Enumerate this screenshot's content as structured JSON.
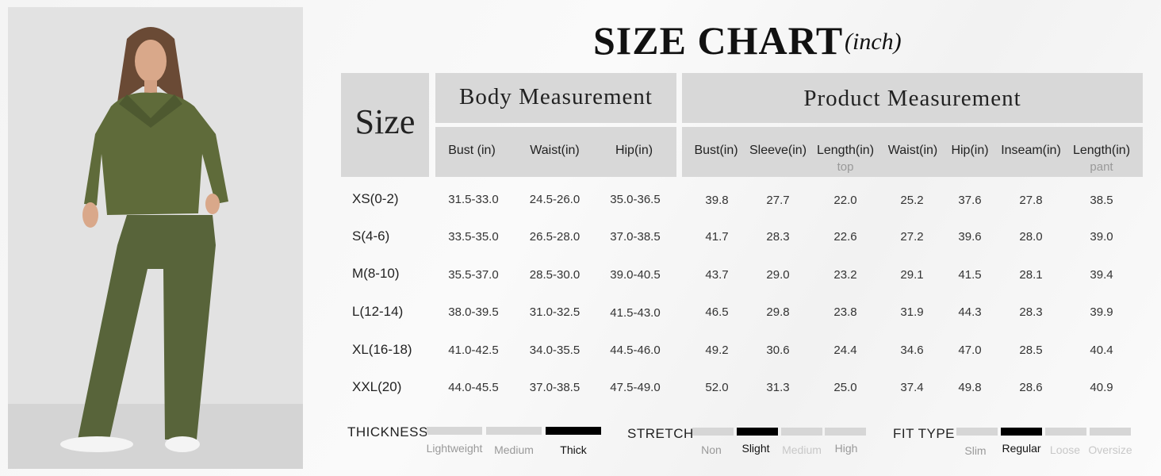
{
  "title": "SIZE CHART",
  "unit": "(inch)",
  "size_header": "Size",
  "body_header": "Body Measurement",
  "product_header": "Product Measurement",
  "body_columns": [
    "Bust (in)",
    "Waist(in)",
    "Hip(in)"
  ],
  "product_columns": [
    {
      "label": "Bust(in)",
      "sub": ""
    },
    {
      "label": "Sleeve(in)",
      "sub": ""
    },
    {
      "label": "Length(in)",
      "sub": "top"
    },
    {
      "label": "Waist(in)",
      "sub": ""
    },
    {
      "label": "Hip(in)",
      "sub": ""
    },
    {
      "label": "Inseam(in)",
      "sub": ""
    },
    {
      "label": "Length(in)",
      "sub": "pant"
    }
  ],
  "rows": [
    {
      "size": "XS(0-2)",
      "body": [
        "31.5-33.0",
        "24.5-26.0",
        "35.0-36.5"
      ],
      "product": [
        "39.8",
        "27.7",
        "22.0",
        "25.2",
        "37.6",
        "27.8",
        "38.5"
      ]
    },
    {
      "size": "S(4-6)",
      "body": [
        "33.5-35.0",
        "26.5-28.0",
        "37.0-38.5"
      ],
      "product": [
        "41.7",
        "28.3",
        "22.6",
        "27.2",
        "39.6",
        "28.0",
        "39.0"
      ]
    },
    {
      "size": "M(8-10)",
      "body": [
        "35.5-37.0",
        "28.5-30.0",
        "39.0-40.5"
      ],
      "product": [
        "43.7",
        "29.0",
        "23.2",
        "29.1",
        "41.5",
        "28.1",
        "39.4"
      ]
    },
    {
      "size": "L(12-14)",
      "body": [
        "38.0-39.5",
        "31.0-32.5",
        "41.5-43.0"
      ],
      "product": [
        "46.5",
        "29.8",
        "23.8",
        "31.9",
        "44.3",
        "28.3",
        "39.9"
      ]
    },
    {
      "size": "XL(16-18)",
      "body": [
        "41.0-42.5",
        "34.0-35.5",
        "44.5-46.0"
      ],
      "product": [
        "49.2",
        "30.6",
        "24.4",
        "34.6",
        "47.0",
        "28.5",
        "40.4"
      ]
    },
    {
      "size": "XXL(20)",
      "body": [
        "44.0-45.5",
        "37.0-38.5",
        "47.5-49.0"
      ],
      "product": [
        "52.0",
        "31.3",
        "25.0",
        "37.4",
        "49.8",
        "28.6",
        "40.9"
      ]
    }
  ],
  "scales": [
    {
      "label": "THICKNESS",
      "options": [
        "Lightweight",
        "Medium",
        "Thick"
      ],
      "selected": 2
    },
    {
      "label": "STRETCH",
      "options": [
        "Non",
        "Slight",
        "Medium",
        "High"
      ],
      "selected": 1
    },
    {
      "label": "FIT TYPE",
      "options": [
        "Slim",
        "Regular",
        "Loose",
        "Oversize"
      ],
      "selected": 1
    }
  ],
  "colors": {
    "header_bg": "#d8d8d8",
    "active_segment": "#000000",
    "inactive_segment": "#d6d6d6",
    "outfit": "#5f6b3a"
  }
}
